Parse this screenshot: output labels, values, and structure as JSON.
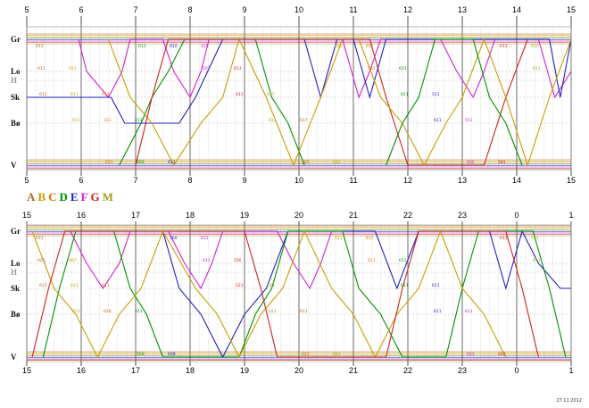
{
  "chart_data": {
    "type": "line",
    "title": "",
    "legend_position": "left",
    "legend": [
      {
        "letter": "A",
        "color": "#b5651d"
      },
      {
        "letter": "B",
        "color": "#c8a000"
      },
      {
        "letter": "C",
        "color": "#e07000"
      },
      {
        "letter": "D",
        "color": "#009000"
      },
      {
        "letter": "E",
        "color": "#2020c0"
      },
      {
        "letter": "F",
        "color": "#d020d0"
      },
      {
        "letter": "G",
        "color": "#d02020"
      },
      {
        "letter": "M",
        "color": "#a0a020"
      }
    ],
    "stations": [
      "Gr",
      "Lo",
      "H",
      "Sk",
      "Bø",
      "V"
    ],
    "panels": [
      {
        "x_ticks": [
          "5",
          "6",
          "7",
          "8",
          "9",
          "10",
          "11",
          "12",
          "13",
          "14",
          "15"
        ],
        "hour_start": 5,
        "lines": [
          {
            "color": "#d020d0",
            "points": [
              [
                5.95,
                "Gr"
              ],
              [
                6.1,
                "Lo"
              ],
              [
                6.5,
                "Sk"
              ],
              [
                6.75,
                "Lo"
              ],
              [
                6.9,
                "Gr"
              ],
              [
                7.5,
                "Gr"
              ],
              [
                7.7,
                "Lo"
              ],
              [
                8.0,
                "Sk"
              ],
              [
                8.2,
                "Lo"
              ],
              [
                8.35,
                "Gr"
              ]
            ]
          },
          {
            "color": "#2020c0",
            "points": [
              [
                5.0,
                "Sk"
              ],
              [
                6.55,
                "Sk"
              ],
              [
                6.8,
                "Bø"
              ],
              [
                7.8,
                "Bø"
              ],
              [
                8.1,
                "Sk"
              ],
              [
                8.6,
                "Gr"
              ],
              [
                10.1,
                "Gr"
              ],
              [
                10.4,
                "Sk"
              ],
              [
                10.7,
                "Gr"
              ]
            ]
          },
          {
            "color": "#009000",
            "points": [
              [
                6.7,
                "V"
              ],
              [
                7.1,
                "Bø"
              ],
              [
                7.3,
                "Sk"
              ],
              [
                7.6,
                "Lo"
              ],
              [
                7.9,
                "Gr"
              ],
              [
                9.2,
                "Gr"
              ],
              [
                9.5,
                "Sk"
              ],
              [
                9.8,
                "Bø"
              ],
              [
                10.1,
                "V"
              ]
            ]
          },
          {
            "color": "#c8a000",
            "points": [
              [
                6.5,
                "Gr"
              ],
              [
                6.9,
                "Sk"
              ],
              [
                7.3,
                "Bø"
              ],
              [
                7.7,
                "V"
              ],
              [
                8.2,
                "Bø"
              ],
              [
                8.6,
                "Sk"
              ],
              [
                8.9,
                "Gr"
              ],
              [
                9.4,
                "Sk"
              ],
              [
                9.9,
                "V"
              ],
              [
                10.4,
                "Sk"
              ],
              [
                10.8,
                "Gr"
              ]
            ]
          },
          {
            "color": "#d02020",
            "points": [
              [
                7.0,
                "V"
              ],
              [
                7.3,
                "Sk"
              ],
              [
                7.6,
                "Gr"
              ],
              [
                11.3,
                "Gr"
              ],
              [
                11.6,
                "Sk"
              ],
              [
                12.0,
                "V"
              ],
              [
                13.4,
                "V"
              ],
              [
                13.8,
                "Sk"
              ],
              [
                14.2,
                "Gr"
              ]
            ]
          },
          {
            "color": "#d020d0",
            "points": [
              [
                10.8,
                "Gr"
              ],
              [
                11.1,
                "Sk"
              ],
              [
                11.3,
                "Lo"
              ],
              [
                11.5,
                "Gr"
              ],
              [
                12.6,
                "Gr"
              ],
              [
                12.9,
                "Lo"
              ],
              [
                13.2,
                "Sk"
              ],
              [
                13.4,
                "Lo"
              ],
              [
                13.6,
                "Gr"
              ],
              [
                14.4,
                "Gr"
              ],
              [
                14.7,
                "Sk"
              ],
              [
                15.0,
                "Lo"
              ]
            ]
          },
          {
            "color": "#2020c0",
            "points": [
              [
                11.0,
                "Gr"
              ],
              [
                11.3,
                "Sk"
              ],
              [
                11.6,
                "Gr"
              ],
              [
                14.6,
                "Gr"
              ],
              [
                14.8,
                "Sk"
              ],
              [
                15.0,
                "Gr"
              ]
            ]
          },
          {
            "color": "#c8a000",
            "points": [
              [
                11.1,
                "Gr"
              ],
              [
                11.5,
                "Sk"
              ],
              [
                11.9,
                "Bø"
              ],
              [
                12.3,
                "V"
              ],
              [
                12.7,
                "Bø"
              ],
              [
                13.0,
                "Sk"
              ],
              [
                13.4,
                "Gr"
              ],
              [
                13.8,
                "Sk"
              ],
              [
                14.2,
                "V"
              ],
              [
                14.6,
                "Sk"
              ],
              [
                15.0,
                "Gr"
              ]
            ]
          },
          {
            "color": "#009000",
            "points": [
              [
                11.6,
                "V"
              ],
              [
                11.9,
                "Bø"
              ],
              [
                12.2,
                "Sk"
              ],
              [
                12.5,
                "Gr"
              ],
              [
                13.2,
                "Gr"
              ],
              [
                13.5,
                "Sk"
              ],
              [
                13.8,
                "Bø"
              ],
              [
                14.1,
                "V"
              ]
            ]
          }
        ],
        "labels": [
          "613",
          "551",
          "613",
          "411",
          "611",
          "415",
          "613",
          "617",
          "617",
          "611",
          "611",
          "621",
          "511",
          "551",
          "581",
          "620",
          "611",
          "611",
          "311",
          "602",
          "610",
          "501",
          "611",
          "611",
          "581",
          "600",
          "581",
          "611",
          "611",
          "602",
          "611",
          "611",
          "611",
          "611",
          "611",
          "611"
        ]
      },
      {
        "x_ticks": [
          "15",
          "16",
          "17",
          "18",
          "19",
          "20",
          "21",
          "22",
          "23",
          "0",
          "1"
        ],
        "hour_start": 15,
        "lines": [
          {
            "color": "#d020d0",
            "points": [
              [
                15.8,
                "Gr"
              ],
              [
                16.1,
                "Lo"
              ],
              [
                16.4,
                "Sk"
              ],
              [
                16.7,
                "Lo"
              ],
              [
                16.9,
                "Gr"
              ],
              [
                17.6,
                "Gr"
              ],
              [
                17.9,
                "Lo"
              ],
              [
                18.2,
                "Sk"
              ],
              [
                18.4,
                "Lo"
              ],
              [
                18.6,
                "Gr"
              ],
              [
                19.6,
                "Gr"
              ],
              [
                19.9,
                "Lo"
              ],
              [
                20.2,
                "Sk"
              ],
              [
                20.4,
                "Lo"
              ],
              [
                20.6,
                "Gr"
              ]
            ]
          },
          {
            "color": "#2020c0",
            "points": [
              [
                17.5,
                "Gr"
              ],
              [
                17.8,
                "Sk"
              ],
              [
                18.2,
                "Bø"
              ],
              [
                18.6,
                "V"
              ],
              [
                19.0,
                "Bø"
              ],
              [
                19.4,
                "Sk"
              ],
              [
                19.8,
                "Gr"
              ],
              [
                21.4,
                "Gr"
              ],
              [
                21.8,
                "Sk"
              ],
              [
                22.2,
                "Gr"
              ],
              [
                23.5,
                "Gr"
              ],
              [
                23.8,
                "Sk"
              ],
              [
                24.1,
                "Gr"
              ],
              [
                24.4,
                "Lo"
              ],
              [
                24.8,
                "Sk"
              ],
              [
                25.0,
                "Sk"
              ]
            ]
          },
          {
            "color": "#009000",
            "points": [
              [
                15.3,
                "V"
              ],
              [
                15.6,
                "Sk"
              ],
              [
                15.9,
                "Gr"
              ],
              [
                16.6,
                "Gr"
              ],
              [
                16.9,
                "Sk"
              ],
              [
                17.2,
                "Bø"
              ],
              [
                17.5,
                "V"
              ],
              [
                18.9,
                "V"
              ],
              [
                19.2,
                "Bø"
              ],
              [
                19.5,
                "Sk"
              ],
              [
                19.8,
                "Gr"
              ],
              [
                20.8,
                "Gr"
              ],
              [
                21.1,
                "Sk"
              ],
              [
                21.5,
                "Bø"
              ],
              [
                21.9,
                "V"
              ],
              [
                22.7,
                "V"
              ],
              [
                23.0,
                "Sk"
              ],
              [
                23.3,
                "Gr"
              ],
              [
                24.3,
                "Gr"
              ],
              [
                24.6,
                "Sk"
              ],
              [
                24.9,
                "V"
              ]
            ]
          },
          {
            "color": "#c8a000",
            "points": [
              [
                15.1,
                "Gr"
              ],
              [
                15.5,
                "Sk"
              ],
              [
                15.9,
                "Bø"
              ],
              [
                16.3,
                "V"
              ],
              [
                16.7,
                "Bø"
              ],
              [
                17.1,
                "Sk"
              ],
              [
                17.5,
                "Gr"
              ],
              [
                18.1,
                "Sk"
              ],
              [
                18.5,
                "Bø"
              ],
              [
                18.9,
                "V"
              ],
              [
                19.3,
                "Bø"
              ],
              [
                19.7,
                "Sk"
              ],
              [
                20.1,
                "Gr"
              ],
              [
                20.6,
                "Sk"
              ],
              [
                21.0,
                "Bø"
              ],
              [
                21.4,
                "V"
              ],
              [
                21.8,
                "Bø"
              ],
              [
                22.2,
                "Sk"
              ],
              [
                22.6,
                "Gr"
              ],
              [
                23.0,
                "Sk"
              ],
              [
                23.4,
                "Bø"
              ],
              [
                23.8,
                "V"
              ]
            ]
          },
          {
            "color": "#d02020",
            "points": [
              [
                15.1,
                "V"
              ],
              [
                15.4,
                "Sk"
              ],
              [
                15.7,
                "Gr"
              ],
              [
                19.0,
                "Gr"
              ],
              [
                19.3,
                "Sk"
              ],
              [
                19.6,
                "V"
              ],
              [
                21.6,
                "V"
              ],
              [
                21.9,
                "Sk"
              ],
              [
                22.2,
                "Gr"
              ],
              [
                23.8,
                "Gr"
              ],
              [
                24.1,
                "Sk"
              ],
              [
                24.4,
                "V"
              ]
            ]
          }
        ],
        "labels": [
          "551",
          "607",
          "611",
          "611",
          "628",
          "611",
          "556",
          "423",
          "611",
          "611",
          "611",
          "611",
          "611",
          "611",
          "622",
          "521",
          "621",
          "623",
          "628",
          "556",
          "560",
          "611",
          "521",
          "611",
          "621",
          "611",
          "611",
          "611",
          "611",
          "611",
          "611",
          "611",
          "611",
          "611"
        ]
      }
    ]
  },
  "date_stamp": "27.11.2012"
}
